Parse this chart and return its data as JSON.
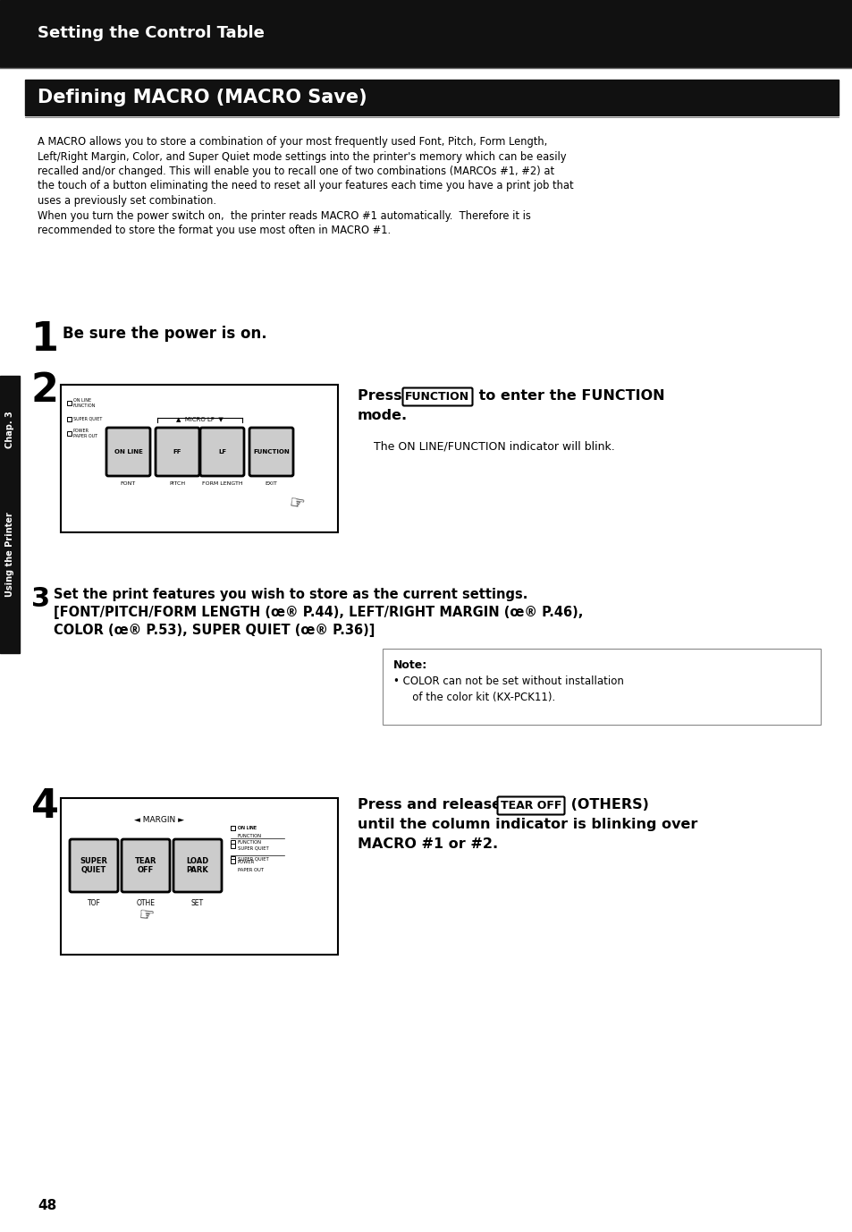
{
  "page_bg": "#ffffff",
  "top_bar_color": "#111111",
  "top_bar_text": "Setting the Control Table",
  "top_bar_text_color": "#ffffff",
  "section_bar_color": "#111111",
  "section_bar_text": "Defining MACRO (MACRO Save)",
  "section_bar_text_color": "#ffffff",
  "body_text_color": "#000000",
  "sidebar_color": "#111111",
  "sidebar_text1": "Chap. 3",
  "sidebar_text2": "Using the Printer",
  "sidebar_text_color": "#ffffff",
  "intro_lines": [
    "A MACRO allows you to store a combination of your most frequently used Font, Pitch, Form Length,",
    "Left/Right Margin, Color, and Super Quiet mode settings into the printer's memory which can be easily",
    "recalled and/or changed. This will enable you to recall one of two combinations (MARCOs #1, #2) at",
    "the touch of a button eliminating the need to reset all your features each time you have a print job that",
    "uses a previously set combination.",
    "When you turn the power switch on,  the printer reads MACRO #1 automatically.  Therefore it is",
    "recommended to store the format you use most often in MACRO #1."
  ],
  "step1_num": "1",
  "step1_text": "Be sure the power is on.",
  "step2_num": "2",
  "step2_subtext": "The ON LINE/FUNCTION indicator will blink.",
  "step3_num": "3",
  "step3_line1": "Set the print features you wish to store as the current settings.",
  "step3_line2": "[FONT/PITCH/FORM LENGTH (œ® P.44), LEFT/RIGHT MARGIN (œ® P.46),",
  "step3_line3": "COLOR (œ® P.53), SUPER QUIET (œ® P.36)]",
  "note_title": "Note:",
  "note_line1": "• COLOR can not be set without installation",
  "note_line2": "   of the color kit (KX-PCK11).",
  "step4_num": "4",
  "step4_line1": "Press and release",
  "step4_btn": "TEAR OFF",
  "step4_post": "(OTHERS)",
  "step4_line2": "until the column indicator is blinking over",
  "step4_line3": "MACRO #1 or #2.",
  "page_number": "48"
}
